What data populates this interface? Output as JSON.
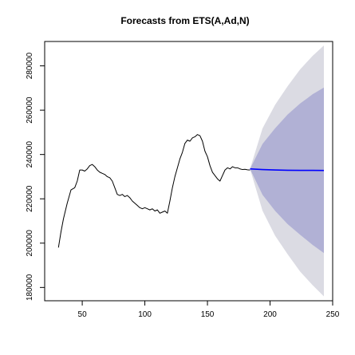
{
  "chart_data": {
    "type": "line",
    "title": "Forecasts from ETS(A,Ad,N)",
    "xlabel": "",
    "ylabel": "",
    "xlim": [
      20,
      250
    ],
    "ylim": [
      174000,
      291000
    ],
    "x_ticks": [
      50,
      100,
      150,
      200,
      250
    ],
    "x_tick_labels": [
      "50",
      "100",
      "150",
      "200",
      "250"
    ],
    "y_ticks": [
      180000,
      200000,
      220000,
      240000,
      260000,
      280000
    ],
    "y_tick_labels": [
      "180000",
      "200000",
      "220000",
      "240000",
      "260000",
      "280000"
    ],
    "grid": false,
    "legend": "none",
    "colors": {
      "observed": "#000000",
      "forecast": "#0000ff",
      "band_95": "#dbdbe3",
      "band_80": "#b1b1d5",
      "frame": "#000000",
      "background": "#ffffff"
    },
    "series": [
      {
        "kind": "observed",
        "x": [
          31,
          33,
          35,
          38,
          41,
          44,
          46,
          48,
          50,
          52,
          54,
          56,
          58,
          60,
          62,
          64,
          66,
          68,
          70,
          72,
          74,
          76,
          78,
          80,
          82,
          84,
          86,
          88,
          90,
          92,
          94,
          96,
          98,
          100,
          102,
          104,
          106,
          108,
          110,
          112,
          114,
          116,
          118,
          120,
          122,
          124,
          126,
          128,
          130,
          132,
          134,
          136,
          138,
          140,
          142,
          144,
          146,
          148,
          150,
          152,
          154,
          156,
          158,
          160,
          162,
          164,
          166,
          168,
          170,
          172,
          174,
          176,
          178,
          180,
          182,
          184
        ],
        "y": [
          198000,
          205000,
          211000,
          218000,
          224000,
          225000,
          228000,
          233000,
          233000,
          232500,
          233500,
          235000,
          235500,
          234500,
          233000,
          232000,
          231500,
          231000,
          230000,
          229500,
          228000,
          225000,
          222000,
          221500,
          222000,
          221000,
          221500,
          220500,
          219000,
          218000,
          217000,
          216000,
          215500,
          216000,
          215500,
          215000,
          215500,
          214500,
          215000,
          213500,
          214000,
          214500,
          213500,
          219000,
          225000,
          230000,
          234000,
          238000,
          241000,
          245000,
          246500,
          246000,
          247500,
          248000,
          249000,
          248500,
          246000,
          241500,
          239000,
          235000,
          232000,
          230500,
          229000,
          228000,
          230500,
          233000,
          234000,
          233500,
          234500,
          234000,
          234000,
          233500,
          233200,
          233300,
          233100,
          233000
        ]
      },
      {
        "kind": "forecast",
        "x": [
          184,
          194,
          204,
          214,
          224,
          234,
          243
        ],
        "y": [
          233500,
          233200,
          233000,
          232900,
          232850,
          232820,
          232800
        ],
        "lower80": [
          233500,
          221800,
          214600,
          208600,
          203800,
          199200,
          195500
        ],
        "upper80": [
          233500,
          244800,
          251800,
          258000,
          263000,
          267200,
          270200
        ],
        "lower95": [
          233500,
          214600,
          203400,
          195000,
          187200,
          181000,
          176000
        ],
        "upper95": [
          233500,
          251800,
          262400,
          270800,
          278400,
          284500,
          289200
        ]
      }
    ]
  }
}
